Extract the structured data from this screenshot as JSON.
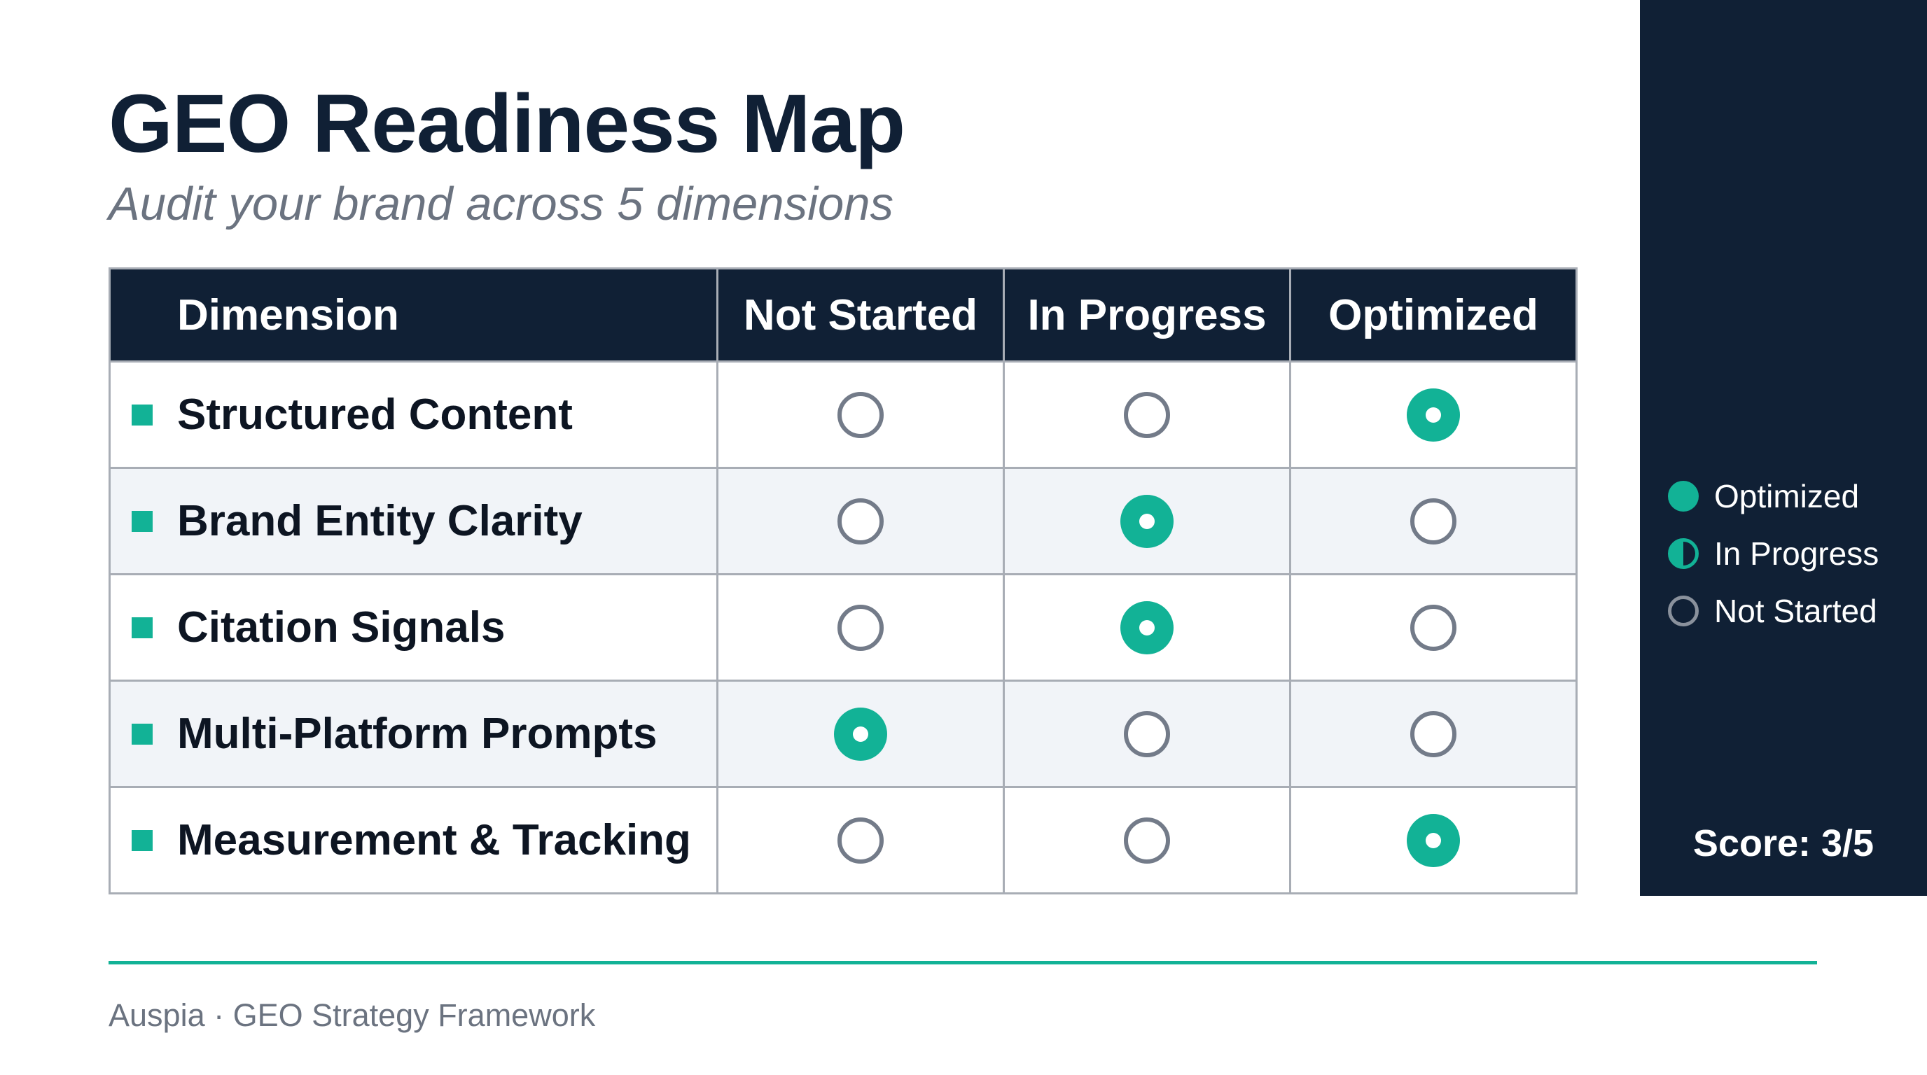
{
  "header": {
    "title": "GEO Readiness Map",
    "subtitle": "Audit your brand across 5 dimensions"
  },
  "table": {
    "columns": [
      "Dimension",
      "Not Started",
      "In Progress",
      "Optimized"
    ],
    "rows": [
      {
        "dimension": "Structured Content",
        "status": "Optimized"
      },
      {
        "dimension": "Brand Entity Clarity",
        "status": "In Progress"
      },
      {
        "dimension": "Citation Signals",
        "status": "In Progress"
      },
      {
        "dimension": "Multi-Platform Prompts",
        "status": "Not Started"
      },
      {
        "dimension": "Measurement & Tracking",
        "status": "Optimized"
      }
    ]
  },
  "legend": {
    "items": [
      {
        "label": "Optimized",
        "icon": "filled-circle-icon"
      },
      {
        "label": "In Progress",
        "icon": "half-filled-circle-icon"
      },
      {
        "label": "Not Started",
        "icon": "empty-circle-icon"
      }
    ]
  },
  "score": {
    "text": "Score: 3/5"
  },
  "footer": {
    "text": "Auspia · GEO Strategy Framework"
  },
  "colors": {
    "accent": "#12b296",
    "navy": "#102035",
    "muted": "#6b7380"
  }
}
